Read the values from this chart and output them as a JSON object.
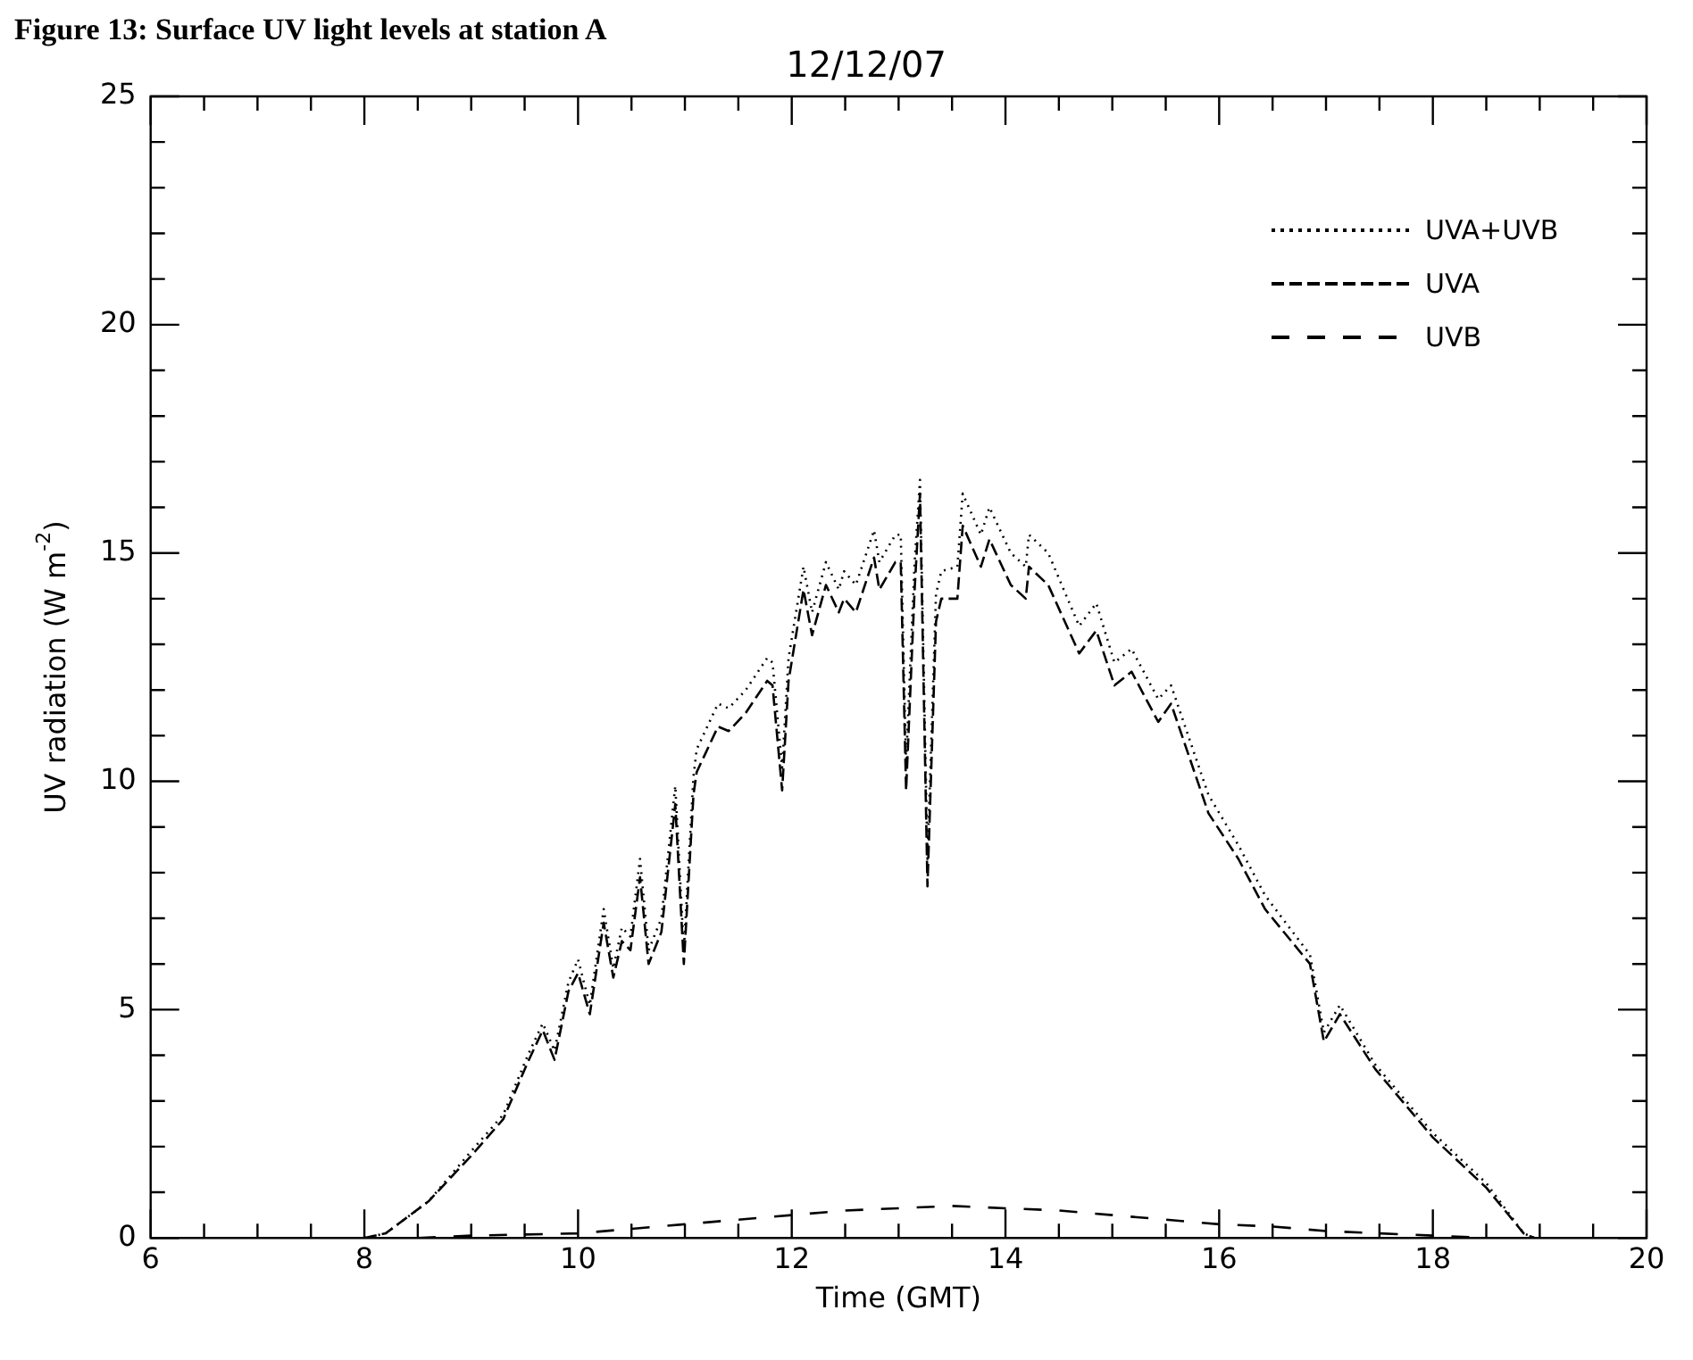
{
  "chart_data": {
    "type": "line",
    "title": "12/12/07",
    "xlabel": "Time (GMT)",
    "ylabel": "UV radiation (W m$^{-2}$)",
    "annotations": [
      "Figure 13: Surface UV light levels at station A"
    ],
    "xlim": [
      6,
      20
    ],
    "xticks": [
      6,
      8,
      10,
      12,
      14,
      16,
      18,
      20
    ],
    "ylim": [
      0,
      25
    ],
    "yticks": [
      0,
      5,
      10,
      15,
      20,
      25
    ],
    "grid": false,
    "legend": "top right",
    "marker": "none",
    "series": [
      {
        "name": "UVA+UVB",
        "color": "#000000",
        "line_style": "dotted",
        "x": [
          8.0,
          8.2,
          8.6,
          9.0,
          9.3,
          9.53,
          9.67,
          9.78,
          9.91,
          10.0,
          10.11,
          10.24,
          10.33,
          10.41,
          10.49,
          10.58,
          10.66,
          10.78,
          10.91,
          10.99,
          11.08,
          11.11,
          11.31,
          11.41,
          11.57,
          11.77,
          11.82,
          11.91,
          11.97,
          12.11,
          12.19,
          12.32,
          12.44,
          12.49,
          12.6,
          12.77,
          12.82,
          12.97,
          13.02,
          13.07,
          13.15,
          13.2,
          13.27,
          13.35,
          13.4,
          13.55,
          13.6,
          13.77,
          13.85,
          14.05,
          14.19,
          14.22,
          14.4,
          14.69,
          14.85,
          15.02,
          15.18,
          15.43,
          15.55,
          15.9,
          16.18,
          16.43,
          16.85,
          16.98,
          17.13,
          17.46,
          18.0,
          18.5,
          18.85,
          18.95
        ],
        "values": [
          0,
          0.1,
          0.8,
          1.9,
          2.7,
          4.0,
          4.7,
          4.1,
          5.6,
          6.1,
          5.1,
          7.2,
          5.9,
          6.8,
          6.6,
          8.3,
          6.3,
          7.0,
          9.9,
          6.3,
          10.1,
          10.7,
          11.7,
          11.6,
          12.0,
          12.7,
          12.6,
          10.3,
          12.7,
          14.7,
          13.7,
          14.8,
          14.2,
          14.6,
          14.3,
          15.5,
          14.8,
          15.4,
          15.4,
          10.4,
          14.8,
          16.6,
          8.3,
          14.1,
          14.6,
          14.7,
          16.3,
          15.4,
          16.0,
          15.0,
          14.7,
          15.4,
          15.0,
          13.4,
          13.9,
          12.6,
          12.9,
          11.8,
          12.1,
          9.7,
          8.6,
          7.5,
          6.2,
          4.5,
          5.1,
          3.8,
          2.3,
          1.2,
          0.1,
          0
        ]
      },
      {
        "name": "UVA",
        "color": "#000000",
        "line_style": "dashed",
        "x": [
          8.0,
          8.2,
          8.6,
          9.0,
          9.3,
          9.53,
          9.67,
          9.78,
          9.91,
          10.0,
          10.11,
          10.24,
          10.33,
          10.41,
          10.49,
          10.58,
          10.66,
          10.78,
          10.91,
          10.99,
          11.08,
          11.11,
          11.31,
          11.41,
          11.57,
          11.77,
          11.82,
          11.91,
          11.97,
          12.11,
          12.19,
          12.32,
          12.44,
          12.49,
          12.6,
          12.77,
          12.82,
          12.97,
          13.02,
          13.07,
          13.15,
          13.2,
          13.27,
          13.35,
          13.4,
          13.55,
          13.6,
          13.77,
          13.85,
          14.05,
          14.19,
          14.22,
          14.4,
          14.69,
          14.85,
          15.02,
          15.18,
          15.43,
          15.55,
          15.9,
          16.18,
          16.43,
          16.85,
          16.98,
          17.13,
          17.46,
          18.0,
          18.5,
          18.85,
          18.95
        ],
        "values": [
          0,
          0.1,
          0.8,
          1.8,
          2.6,
          3.85,
          4.55,
          3.9,
          5.4,
          5.8,
          4.9,
          6.9,
          5.7,
          6.5,
          6.3,
          7.9,
          6.0,
          6.7,
          9.5,
          6.0,
          9.7,
          10.2,
          11.2,
          11.1,
          11.5,
          12.2,
          12.1,
          9.8,
          12.2,
          14.2,
          13.2,
          14.3,
          13.7,
          14.0,
          13.7,
          14.9,
          14.2,
          14.8,
          14.8,
          9.8,
          14.2,
          16.3,
          7.7,
          13.5,
          14.0,
          14.0,
          15.6,
          14.7,
          15.3,
          14.3,
          14.0,
          14.7,
          14.3,
          12.8,
          13.3,
          12.1,
          12.4,
          11.3,
          11.7,
          9.3,
          8.3,
          7.2,
          6.0,
          4.3,
          4.9,
          3.7,
          2.2,
          1.1,
          0.1,
          0
        ]
      },
      {
        "name": "UVB",
        "color": "#000000",
        "line_style": "dashed_wide",
        "x": [
          8.5,
          9.0,
          10.0,
          11.0,
          12.0,
          12.5,
          13.0,
          13.5,
          14.0,
          14.5,
          15.0,
          15.5,
          16.0,
          16.5,
          17.0,
          17.5,
          18.0,
          18.5
        ],
        "values": [
          0,
          0.05,
          0.1,
          0.3,
          0.5,
          0.6,
          0.65,
          0.7,
          0.65,
          0.6,
          0.5,
          0.4,
          0.3,
          0.25,
          0.15,
          0.1,
          0.05,
          0
        ]
      }
    ]
  }
}
